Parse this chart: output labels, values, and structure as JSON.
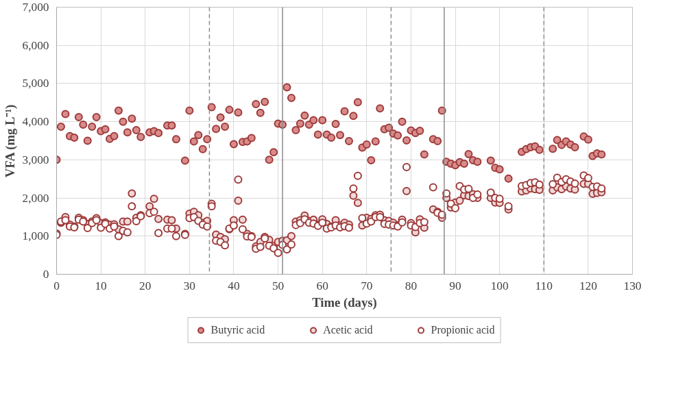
{
  "chart_data": {
    "type": "scatter",
    "xlabel": "Time (days)",
    "ylabel": "VFA (mg L⁻¹)",
    "x": [
      0,
      1,
      2,
      3,
      4,
      5,
      6,
      7,
      8,
      9,
      10,
      11,
      12,
      13,
      14,
      15,
      16,
      17,
      18,
      19,
      21,
      22,
      23,
      25,
      26,
      27,
      29,
      30,
      31,
      32,
      33,
      34,
      35,
      36,
      37,
      38,
      39,
      40,
      41,
      42,
      43,
      44,
      45,
      46,
      47,
      48,
      49,
      50,
      51,
      52,
      53,
      54,
      55,
      56,
      57,
      58,
      59,
      60,
      61,
      62,
      63,
      64,
      65,
      66,
      67,
      68,
      69,
      70,
      71,
      72,
      73,
      74,
      75,
      76,
      77,
      78,
      79,
      80,
      81,
      82,
      83,
      85,
      86,
      87,
      88,
      89,
      90,
      91,
      92,
      93,
      94,
      95,
      98,
      99,
      100,
      102,
      105,
      106,
      107,
      108,
      109,
      112,
      113,
      114,
      115,
      116,
      117,
      119,
      120,
      121,
      122,
      123
    ],
    "series": [
      {
        "name": "Butyric acid",
        "color": "#d98b8b",
        "values": [
          3000,
          3870,
          4200,
          3620,
          3580,
          4120,
          3920,
          3500,
          3870,
          4120,
          3750,
          3800,
          3550,
          3620,
          4290,
          4000,
          3720,
          4080,
          3780,
          3600,
          3720,
          3750,
          3700,
          3900,
          3900,
          3540,
          2980,
          4290,
          3480,
          3650,
          3280,
          3540,
          4380,
          3810,
          4110,
          3870,
          4310,
          3410,
          4240,
          3470,
          3480,
          3570,
          4460,
          4230,
          4520,
          3000,
          3200,
          3950,
          3920,
          4900,
          4620,
          3780,
          3950,
          4160,
          3920,
          4040,
          3660,
          4040,
          3660,
          3580,
          3940,
          3650,
          4270,
          3490,
          4150,
          4510,
          3320,
          3400,
          2990,
          3480,
          4350,
          3800,
          3840,
          3690,
          3640,
          4000,
          3510,
          3770,
          3700,
          3760,
          3140,
          3540,
          3490,
          4290,
          2950,
          2900,
          2860,
          2940,
          2900,
          3150,
          2990,
          2950,
          2980,
          2790,
          2750,
          2510,
          3210,
          3280,
          3330,
          3350,
          3260,
          3290,
          3520,
          3390,
          3480,
          3400,
          3330,
          3610,
          3530,
          3100,
          3170,
          3140
        ]
      },
      {
        "name": "Acetic acid",
        "color": "#f2d7d7",
        "values": [
          1070,
          1350,
          1500,
          1300,
          1250,
          1480,
          1420,
          1320,
          1380,
          1470,
          1340,
          1360,
          1300,
          1310,
          1180,
          1380,
          1380,
          2120,
          1480,
          1550,
          1780,
          1980,
          1450,
          1430,
          1420,
          1200,
          1060,
          1590,
          1640,
          1550,
          1350,
          1400,
          1850,
          1040,
          980,
          920,
          1180,
          1420,
          1930,
          1430,
          1060,
          1000,
          730,
          850,
          980,
          900,
          740,
          850,
          880,
          890,
          1000,
          1380,
          1420,
          1540,
          1400,
          1430,
          1300,
          1440,
          1320,
          1250,
          1420,
          1280,
          1350,
          1300,
          2060,
          1870,
          1280,
          1480,
          1450,
          1550,
          1560,
          1420,
          1400,
          1350,
          1290,
          1430,
          2180,
          1340,
          1100,
          1440,
          1220,
          1700,
          1640,
          1480,
          2000,
          1750,
          1880,
          1930,
          2070,
          2050,
          2100,
          2000,
          2000,
          1880,
          1870,
          1700,
          2170,
          2200,
          2250,
          2230,
          2210,
          2200,
          2280,
          2230,
          2300,
          2250,
          2220,
          2370,
          2370,
          2110,
          2130,
          2150
        ]
      },
      {
        "name": "Propionic acid",
        "color": "#ffffff",
        "values": [
          1030,
          1380,
          1420,
          1250,
          1230,
          1430,
          1380,
          1210,
          1340,
          1420,
          1220,
          1320,
          1200,
          1250,
          1000,
          1140,
          1100,
          1780,
          1390,
          1520,
          1600,
          1640,
          1080,
          1200,
          1200,
          1000,
          1030,
          1470,
          1500,
          1400,
          1300,
          1250,
          1780,
          880,
          850,
          760,
          1200,
          1280,
          2480,
          1180,
          990,
          980,
          670,
          720,
          940,
          750,
          680,
          560,
          770,
          650,
          780,
          1290,
          1340,
          1440,
          1350,
          1330,
          1270,
          1350,
          1200,
          1230,
          1280,
          1230,
          1260,
          1220,
          2250,
          2580,
          1470,
          1330,
          1380,
          1500,
          1500,
          1320,
          1300,
          1280,
          1250,
          1360,
          2810,
          1280,
          1240,
          1340,
          1370,
          2280,
          1610,
          1560,
          2120,
          1850,
          1730,
          2310,
          2220,
          2240,
          2000,
          2090,
          2140,
          2000,
          1980,
          1780,
          2310,
          2340,
          2390,
          2410,
          2350,
          2360,
          2530,
          2420,
          2490,
          2430,
          2380,
          2590,
          2520,
          2290,
          2300,
          2250
        ]
      }
    ],
    "xlim": [
      0,
      130
    ],
    "xticks": [
      0,
      10,
      20,
      30,
      40,
      50,
      60,
      70,
      80,
      90,
      100,
      110,
      120,
      130
    ],
    "ylim": [
      0,
      7000
    ],
    "yticks": [
      0,
      {
        "value": 1000,
        "label": "1,000"
      },
      {
        "value": 2000,
        "label": "2,000"
      },
      {
        "value": 3000,
        "label": "3,000"
      },
      {
        "value": 4000,
        "label": "4,000"
      },
      {
        "value": 5000,
        "label": "5,000"
      },
      {
        "value": 6000,
        "label": "6,000"
      },
      {
        "value": 7000,
        "label": "7,000"
      }
    ],
    "ref_lines": [
      {
        "axis": "x",
        "value": 34.5,
        "color": "#8c8c8c",
        "line_style": "dashed"
      },
      {
        "axis": "x",
        "value": 51,
        "color": "#8c8c8c",
        "line_style": "solid"
      },
      {
        "axis": "x",
        "value": 75.5,
        "color": "#8c8c8c",
        "line_style": "dashed"
      },
      {
        "axis": "x",
        "value": 87.5,
        "color": "#8c8c8c",
        "line_style": "solid"
      },
      {
        "axis": "x",
        "value": 110,
        "color": "#8c8c8c",
        "line_style": "dashed"
      }
    ],
    "grid": true,
    "legend": "bottom",
    "marker": "circle"
  }
}
